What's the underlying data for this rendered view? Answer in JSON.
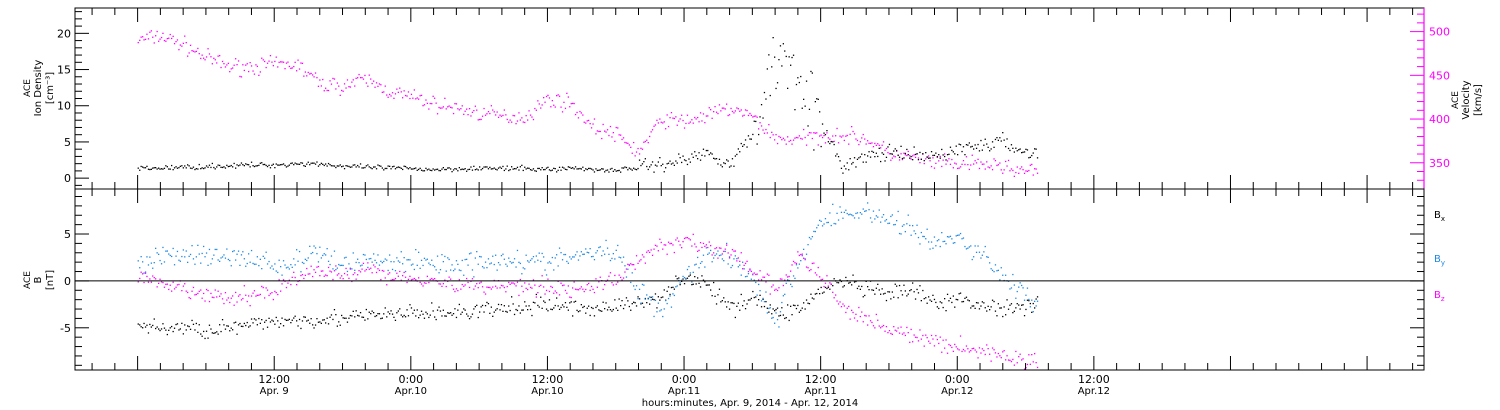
{
  "chart_data": [
    {
      "type": "scatter",
      "panel": "top",
      "left_ylabel": [
        "ACE",
        "Ion Density",
        "[cm⁻³]"
      ],
      "right_ylabel": [
        "ACE",
        "Velocity",
        "[km/s]"
      ],
      "yticks_left": [
        "0",
        "5",
        "10",
        "15",
        "20"
      ],
      "ylim_left": [
        -1.5,
        23.5
      ],
      "yticks_right": [
        "350",
        "400",
        "450",
        "500"
      ],
      "ylim_right": [
        320,
        527
      ],
      "right_axis_color": "#ff00ff",
      "series": [
        {
          "name": "Ion Density",
          "axis": "left",
          "color": "#000000",
          "x_hours": [
            0,
            2,
            4,
            6,
            8,
            10,
            12,
            14,
            16,
            18,
            20,
            22,
            24,
            26,
            28,
            30,
            32,
            34,
            36,
            38,
            40,
            42,
            44,
            46,
            48,
            50,
            52,
            54,
            56,
            58,
            60,
            62,
            64,
            66,
            68,
            70,
            72,
            74,
            76,
            78,
            79
          ],
          "values": [
            1.3,
            1.4,
            1.5,
            1.6,
            1.7,
            1.8,
            1.8,
            2.0,
            2.0,
            1.6,
            1.5,
            1.4,
            1.3,
            1.2,
            1.3,
            1.4,
            1.3,
            1.3,
            1.2,
            1.4,
            1.2,
            1.1,
            1.5,
            2.0,
            2.5,
            3.5,
            2.0,
            6.0,
            17.0,
            15.0,
            7.0,
            1.5,
            3.0,
            3.5,
            3.0,
            3.0,
            4.0,
            4.5,
            5.0,
            3.5,
            3.5
          ]
        },
        {
          "name": "Velocity",
          "axis": "right",
          "color": "#ff00ff",
          "x_hours": [
            0,
            2,
            4,
            6,
            8,
            10,
            12,
            14,
            16,
            18,
            20,
            22,
            24,
            26,
            28,
            30,
            32,
            34,
            36,
            38,
            40,
            42,
            44,
            46,
            48,
            50,
            52,
            54,
            56,
            58,
            60,
            62,
            64,
            66,
            68,
            70,
            72,
            74,
            76,
            78,
            79
          ],
          "values": [
            490,
            495,
            485,
            470,
            460,
            460,
            462,
            462,
            440,
            438,
            445,
            432,
            425,
            417,
            412,
            407,
            403,
            402,
            423,
            418,
            390,
            382,
            362,
            400,
            397,
            404,
            412,
            402,
            378,
            376,
            382,
            381,
            377,
            360,
            356,
            350,
            348,
            348,
            346,
            340,
            340
          ]
        }
      ]
    },
    {
      "type": "scatter",
      "panel": "bottom",
      "ylabel": [
        "ACE",
        "B",
        "[nT]"
      ],
      "yticks": [
        "-5",
        "0",
        "5"
      ],
      "ylim": [
        -9.5,
        9.8
      ],
      "zero_line": true,
      "legend": [
        {
          "label": "B",
          "sub": "x",
          "color": "#000000"
        },
        {
          "label": "B",
          "sub": "y",
          "color": "#1e88e5"
        },
        {
          "label": "B",
          "sub": "z",
          "color": "#ff00ff"
        }
      ],
      "series": [
        {
          "name": "Bx",
          "color": "#000000",
          "x_hours": [
            0,
            2,
            4,
            6,
            8,
            10,
            12,
            14,
            16,
            18,
            20,
            22,
            24,
            26,
            28,
            30,
            32,
            34,
            36,
            38,
            40,
            42,
            44,
            46,
            48,
            50,
            52,
            54,
            56,
            58,
            60,
            62,
            64,
            66,
            68,
            70,
            72,
            74,
            76,
            78,
            79
          ],
          "values": [
            -4.8,
            -5.0,
            -5.0,
            -5.2,
            -5.0,
            -4.8,
            -4.2,
            -4.2,
            -4.0,
            -4.0,
            -3.8,
            -3.6,
            -3.5,
            -3.4,
            -3.4,
            -3.2,
            -3.0,
            -2.8,
            -2.5,
            -2.8,
            -3.0,
            -2.6,
            -2.5,
            -1.5,
            0.5,
            -0.5,
            -3.0,
            -1.5,
            -3.5,
            -3.0,
            -1.0,
            0.0,
            -1.0,
            -1.5,
            -1.0,
            -2.5,
            -2.0,
            -2.5,
            -3.0,
            -2.5,
            -2.5
          ]
        },
        {
          "name": "By",
          "color": "#1e88e5",
          "x_hours": [
            0,
            2,
            4,
            6,
            8,
            10,
            12,
            14,
            16,
            18,
            20,
            22,
            24,
            26,
            28,
            30,
            32,
            34,
            36,
            38,
            40,
            42,
            44,
            46,
            48,
            50,
            52,
            54,
            56,
            58,
            60,
            62,
            64,
            66,
            68,
            70,
            72,
            74,
            76,
            78,
            79
          ],
          "values": [
            2.0,
            2.5,
            3.0,
            2.5,
            2.5,
            2.5,
            1.5,
            2.0,
            3.0,
            1.5,
            2.5,
            2.0,
            2.0,
            2.0,
            1.8,
            2.0,
            2.5,
            2.0,
            2.0,
            2.5,
            3.0,
            3.0,
            -1.0,
            -3.0,
            0.5,
            3.0,
            2.5,
            0.5,
            -4.5,
            2.0,
            6.5,
            7.0,
            7.5,
            6.5,
            5.5,
            4.0,
            4.5,
            3.0,
            0.5,
            -1.5,
            -3.0
          ]
        },
        {
          "name": "Bz",
          "color": "#ff00ff",
          "x_hours": [
            0,
            2,
            4,
            6,
            8,
            10,
            12,
            14,
            16,
            18,
            20,
            22,
            24,
            26,
            28,
            30,
            32,
            34,
            36,
            38,
            40,
            42,
            44,
            46,
            48,
            50,
            52,
            54,
            56,
            58,
            60,
            62,
            64,
            66,
            68,
            70,
            72,
            74,
            76,
            78,
            79
          ],
          "values": [
            0.5,
            -0.5,
            -1.0,
            -1.5,
            -2.0,
            -1.5,
            -1.0,
            0.5,
            1.0,
            0.5,
            1.5,
            0.5,
            0.5,
            0.0,
            -0.5,
            -0.5,
            -0.5,
            -0.5,
            -0.5,
            -1.0,
            -0.5,
            0.0,
            2.5,
            3.5,
            4.5,
            3.5,
            3.0,
            1.0,
            -1.0,
            2.5,
            0.5,
            -3.0,
            -4.0,
            -5.0,
            -6.0,
            -6.5,
            -7.0,
            -7.5,
            -8.0,
            -8.5,
            -8.5
          ]
        }
      ]
    }
  ],
  "x_axis": {
    "xlim_hours": [
      -5.5,
      113
    ],
    "ticks": [
      {
        "hour": 12,
        "time": "12:00",
        "date": "Apr. 9"
      },
      {
        "hour": 24,
        "time": "0:00",
        "date": "Apr.10"
      },
      {
        "hour": 36,
        "time": "12:00",
        "date": "Apr.10"
      },
      {
        "hour": 48,
        "time": "0:00",
        "date": "Apr.11"
      },
      {
        "hour": 60,
        "time": "12:00",
        "date": "Apr.11"
      },
      {
        "hour": 72,
        "time": "0:00",
        "date": "Apr.12"
      },
      {
        "hour": 84,
        "time": "12:00",
        "date": "Apr.12"
      }
    ],
    "minor_step_hours": 2,
    "label": "hours:minutes, Apr.  9, 2014 - Apr. 12, 2014"
  }
}
